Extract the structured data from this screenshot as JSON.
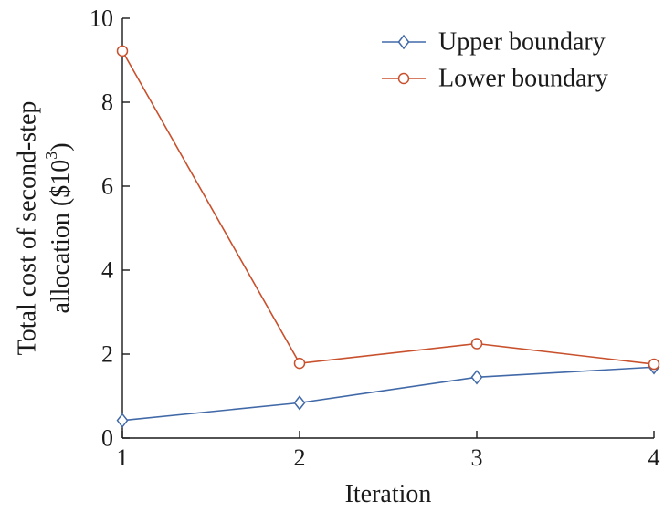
{
  "chart_data": {
    "type": "line",
    "title": "",
    "xlabel": "Iteration",
    "ylabel_line1": "Total cost of second-step",
    "ylabel_line2_prefix": "allocation ($10",
    "ylabel_line2_sup": "3",
    "ylabel_line2_suffix": ")",
    "x": [
      1,
      2,
      3,
      4
    ],
    "xlim": [
      1,
      4
    ],
    "ylim": [
      0,
      10
    ],
    "xticks": [
      "1",
      "2",
      "3",
      "4"
    ],
    "yticks": [
      "0",
      "2",
      "4",
      "6",
      "8",
      "10"
    ],
    "ytick_values": [
      0,
      2,
      4,
      6,
      8,
      10
    ],
    "grid": false,
    "legend_position": "top-right",
    "series": [
      {
        "name": "Upper boundary",
        "values": [
          0.42,
          0.84,
          1.45,
          1.69
        ],
        "color": "#4169a8",
        "marker": "diamond"
      },
      {
        "name": "Lower boundary",
        "values": [
          9.22,
          1.78,
          2.25,
          1.76
        ],
        "color": "#c8502c",
        "marker": "circle"
      }
    ]
  }
}
